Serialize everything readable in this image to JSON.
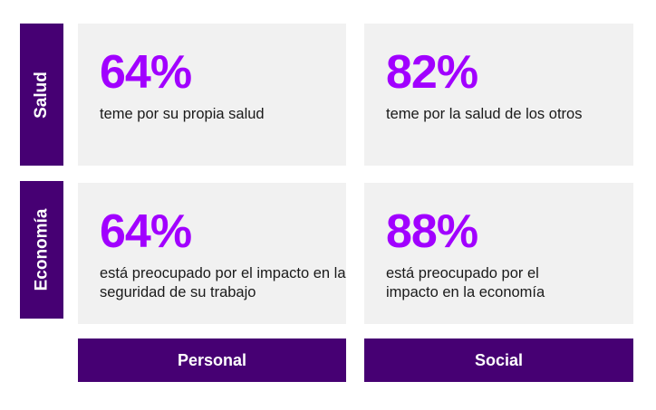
{
  "rows": [
    {
      "label": "Salud"
    },
    {
      "label": "Economía"
    }
  ],
  "columns": [
    {
      "label": "Personal"
    },
    {
      "label": "Social"
    }
  ],
  "cards": {
    "salud_personal": {
      "percent": "64%",
      "text": "teme por su propia salud"
    },
    "salud_social": {
      "percent": "82%",
      "text": "teme por la salud de los otros"
    },
    "economia_personal": {
      "percent": "64%",
      "text": "está preocupado por el impacto en la seguridad de su trabajo"
    },
    "economia_social": {
      "percent": "88%",
      "text": "está preocupado por el impacto en la economía"
    }
  },
  "colors": {
    "accent_purple": "#a100ff",
    "label_purple": "#460073",
    "card_background": "#f1f1f1"
  }
}
